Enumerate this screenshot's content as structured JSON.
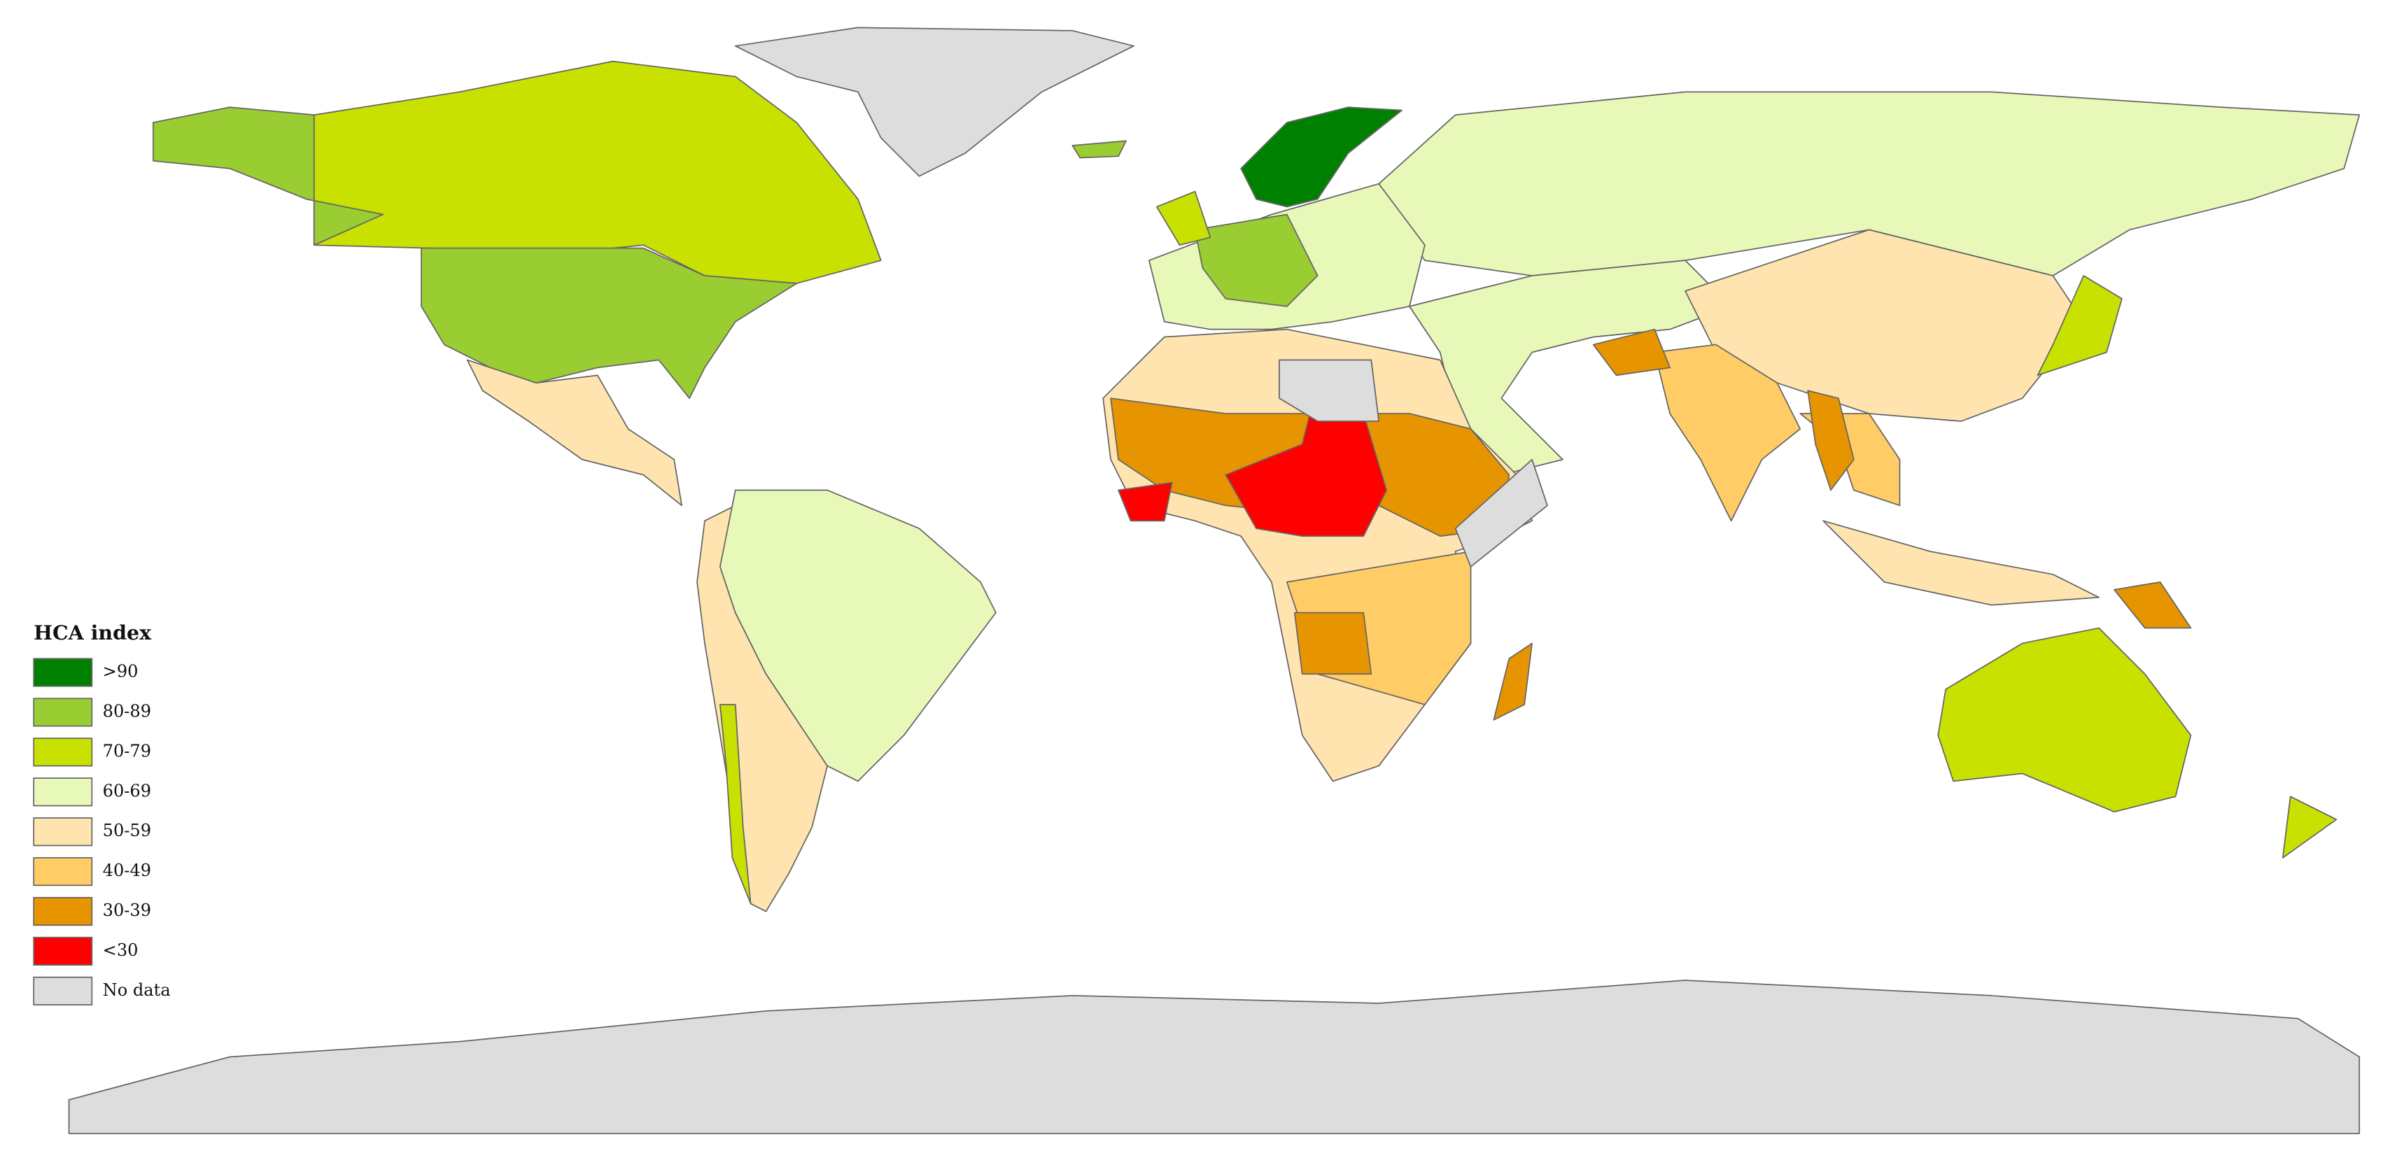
{
  "legend": {
    "title": "HCA index",
    "items": [
      {
        "label": ">90",
        "color": "#008000"
      },
      {
        "label": "80-89",
        "color": "#9ACD32"
      },
      {
        "label": "70-79",
        "color": "#C8E100"
      },
      {
        "label": "60-69",
        "color": "#E8F8B8"
      },
      {
        "label": "50-59",
        "color": "#FFE4B0"
      },
      {
        "label": "40-49",
        "color": "#FFCC66"
      },
      {
        "label": "30-39",
        "color": "#E69500"
      },
      {
        "label": "<30",
        "color": "#FF0000"
      },
      {
        "label": "No data",
        "color": "#DDDDDD"
      }
    ]
  }
}
